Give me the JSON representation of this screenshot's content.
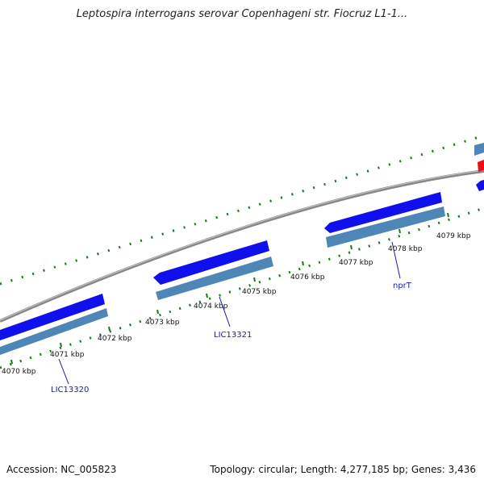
{
  "title": "Leptospira interrogans serovar Copenhageni str. Fiocruz L1-1...",
  "footer": {
    "accession": "Accession: NC_005823",
    "summary": "Topology: circular; Length: 4,277,185 bp; Genes: 3,436"
  },
  "scale_labels": [
    "4070 kbp",
    "4071 kbp",
    "4072 kbp",
    "4073 kbp",
    "4074 kbp",
    "4075 kbp",
    "4076 kbp",
    "4077 kbp",
    "4078 kbp",
    "4079 kbp"
  ],
  "gene_labels": [
    "LIC13320",
    "LIC13321",
    "nprT"
  ],
  "colors": {
    "background": "#ffffff",
    "backbone": "#8a8a8a",
    "gene_forward": "#1010ee",
    "gene_cds": "#4f86b8",
    "gene_other": "#ee1010",
    "tick": "#1a7a1a",
    "gene_label": "#1a1aaa",
    "scale_label": "#111111"
  }
}
